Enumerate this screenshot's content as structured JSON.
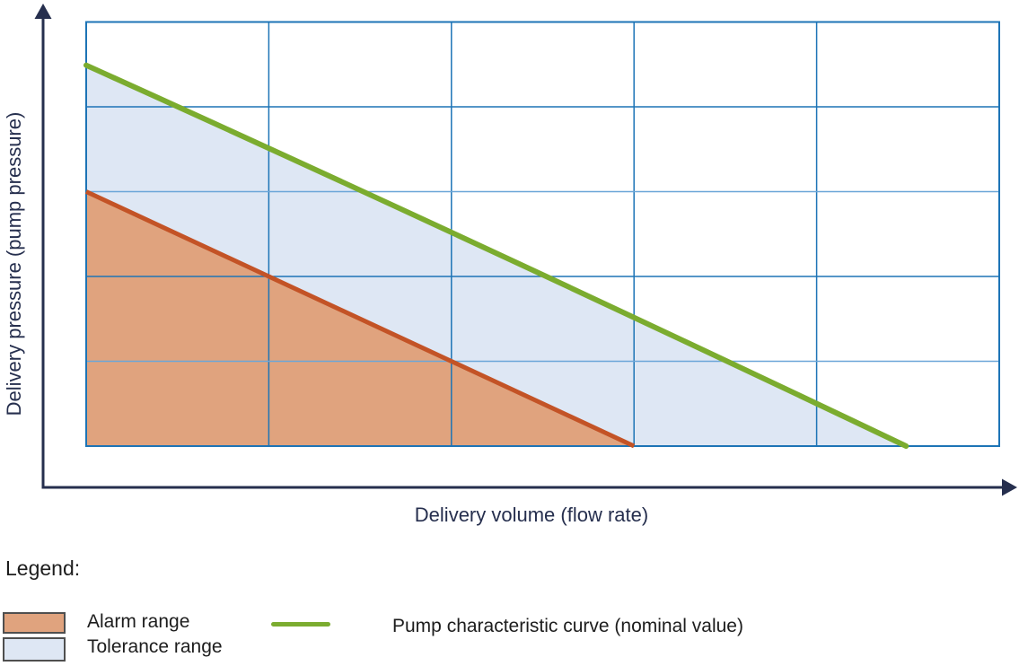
{
  "colors": {
    "axis_navy": "#262f4e",
    "grid_blue": "#1d74b6",
    "grid_blue_light": "#6ba6d8",
    "curve_green": "#7bac2f",
    "alarm_line": "#c35326",
    "alarm_fill": "#e0a37e",
    "tolerance_fill": "#dee7f4",
    "swatch_border": "#4f4f4f",
    "legend_text": "#1d1d1d"
  },
  "axes": {
    "x_label": "Delivery volume (flow rate)",
    "y_label": "Delivery pressure (pump pressure)"
  },
  "legend": {
    "title": "Legend:",
    "alarm_label": "Alarm range",
    "tolerance_label": "Tolerance range",
    "curve_label": "Pump characteristic curve (nominal value)"
  },
  "chart_data": {
    "type": "area",
    "title": "",
    "xlabel": "Delivery volume (flow rate)",
    "ylabel": "Delivery pressure (pump pressure)",
    "x_range": [
      0,
      5
    ],
    "y_range": [
      0,
      5
    ],
    "x_divisions": 5,
    "y_divisions": 5,
    "grid": true,
    "tick_labels": "none",
    "legend_position": "below",
    "series": [
      {
        "name": "Pump characteristic curve (nominal value)",
        "type": "line",
        "color": "#7bac2f",
        "stroke_width": 6,
        "points": [
          [
            0,
            4.49
          ],
          [
            4.49,
            0
          ]
        ],
        "curve_control": [
          2.13,
          2.42
        ]
      },
      {
        "name": "Tolerance range",
        "type": "area",
        "fill": "#dee7f4",
        "upper_boundary": "nominal curve",
        "boundary_points": [
          [
            0,
            4.49
          ],
          [
            4.49,
            0
          ]
        ],
        "curve_control": [
          2.13,
          2.42
        ]
      },
      {
        "name": "Alarm range",
        "type": "area",
        "fill": "#e0a37e",
        "line_color": "#c35326",
        "line_width": 5,
        "boundary_points": [
          [
            0,
            3
          ],
          [
            3,
            0
          ]
        ]
      }
    ]
  }
}
